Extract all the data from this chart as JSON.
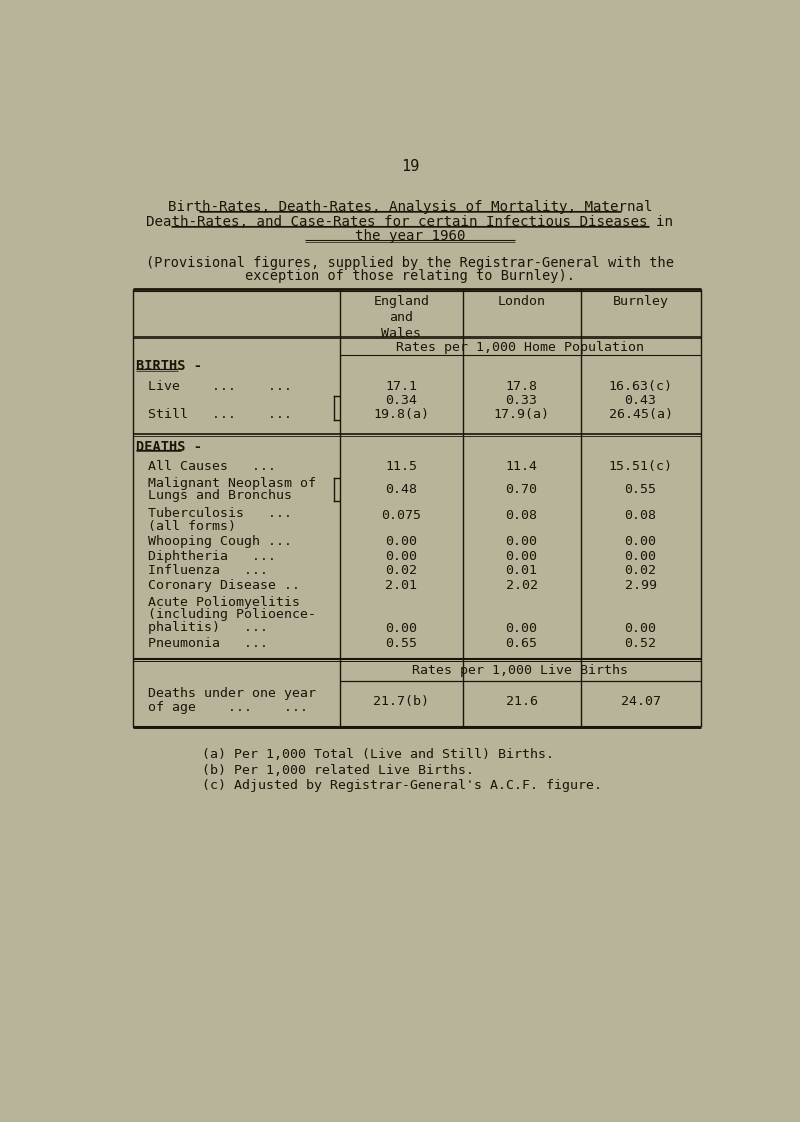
{
  "page_number": "19",
  "title_line1": "Birth-Rates, Death-Rates, Analysis of Mortality, Maternal",
  "title_line2": "Death-Rates, and Case-Rates for certain Infectious Diseases in",
  "title_line3": "the year 1960",
  "subtitle_line1": "(Provisional figures, supplied by the Registrar-General with the",
  "subtitle_line2": "exception of those relating to Burnley).",
  "col_headers": [
    "England\nand\nWales",
    "London",
    "Burnley"
  ],
  "rates_home_pop_label": "Rates per 1,000 Home Population",
  "rates_live_births_label": "Rates per 1,000 Live Births",
  "births_section_label": "BIRTHS -",
  "deaths_section_label": "DEATHS -",
  "footnotes": [
    "(a) Per 1,000 Total (Live and Still) Births.",
    "(b) Per 1,000 related Live Births.",
    "(c) Adjusted by Registrar-General's A.C.F. figure."
  ],
  "bg_color": "#b8b49a",
  "text_color": "#1a1508",
  "line_color": "#1a1508"
}
